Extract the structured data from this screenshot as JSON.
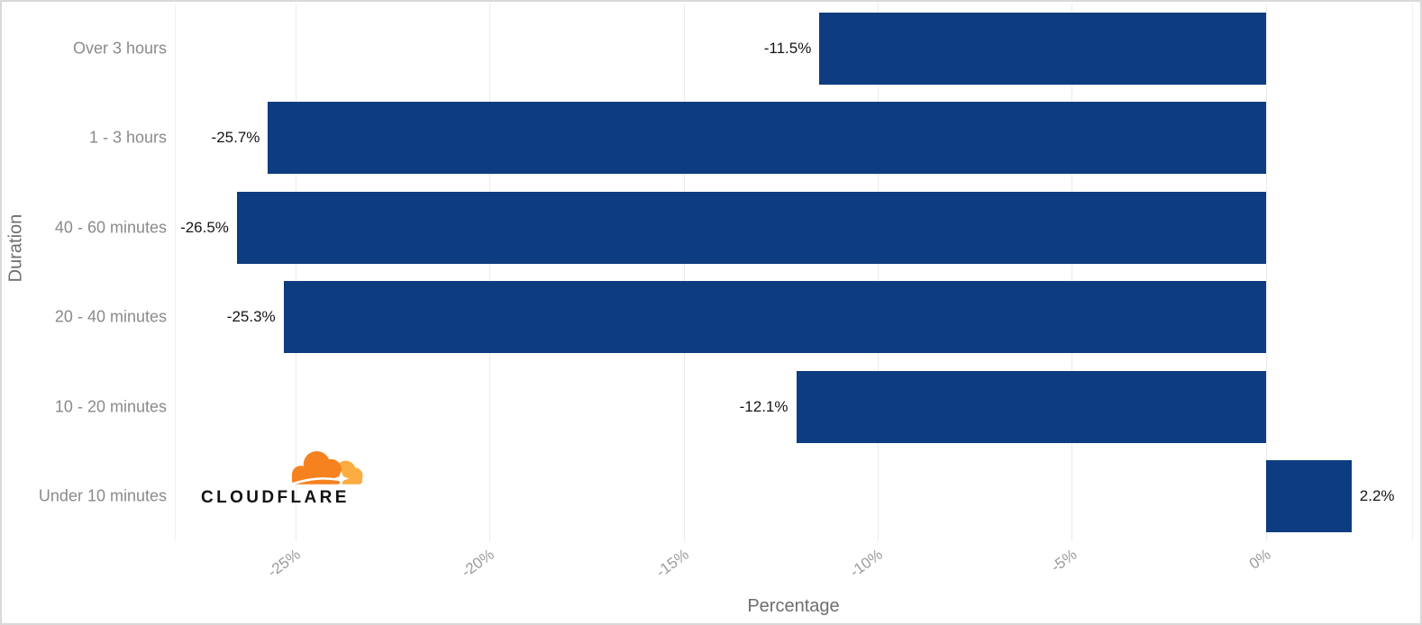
{
  "chart_data": {
    "type": "bar",
    "orientation": "horizontal",
    "title": "",
    "categories": [
      "Over 3 hours",
      "1 - 3 hours",
      "40 - 60 minutes",
      "20 - 40 minutes",
      "10 - 20 minutes",
      "Under 10 minutes"
    ],
    "values": [
      -11.5,
      -25.7,
      -26.5,
      -25.3,
      -12.1,
      2.2
    ],
    "value_labels": [
      "-11.5%",
      "-25.7%",
      "-26.5%",
      "-25.3%",
      "-12.1%",
      "2.2%"
    ],
    "xlabel": "Percentage",
    "ylabel": "Duration",
    "xlim": [
      -28.1,
      3.76
    ],
    "xticks": [
      -25,
      -20,
      -15,
      -10,
      -5,
      0
    ],
    "xtick_labels": [
      "-25%",
      "-20%",
      "-15%",
      "-10%",
      "-5%",
      "0%"
    ],
    "grid": "vertical major gridlines only",
    "legend": "none",
    "bar_color": "#0e3c80"
  },
  "branding": {
    "wordmark": "CLOUDFLARE",
    "cloud_orange": "#f6821f",
    "cloud_light_orange": "#fbad41"
  },
  "colors": {
    "background": "#ffffff",
    "frame_border": "#d9d9d9",
    "gridline": "#ebebeb",
    "category_label": "#8a8a8a",
    "tick_label": "#9c9c9c",
    "axis_title": "#6e6e6e",
    "value_label": "#151515"
  }
}
